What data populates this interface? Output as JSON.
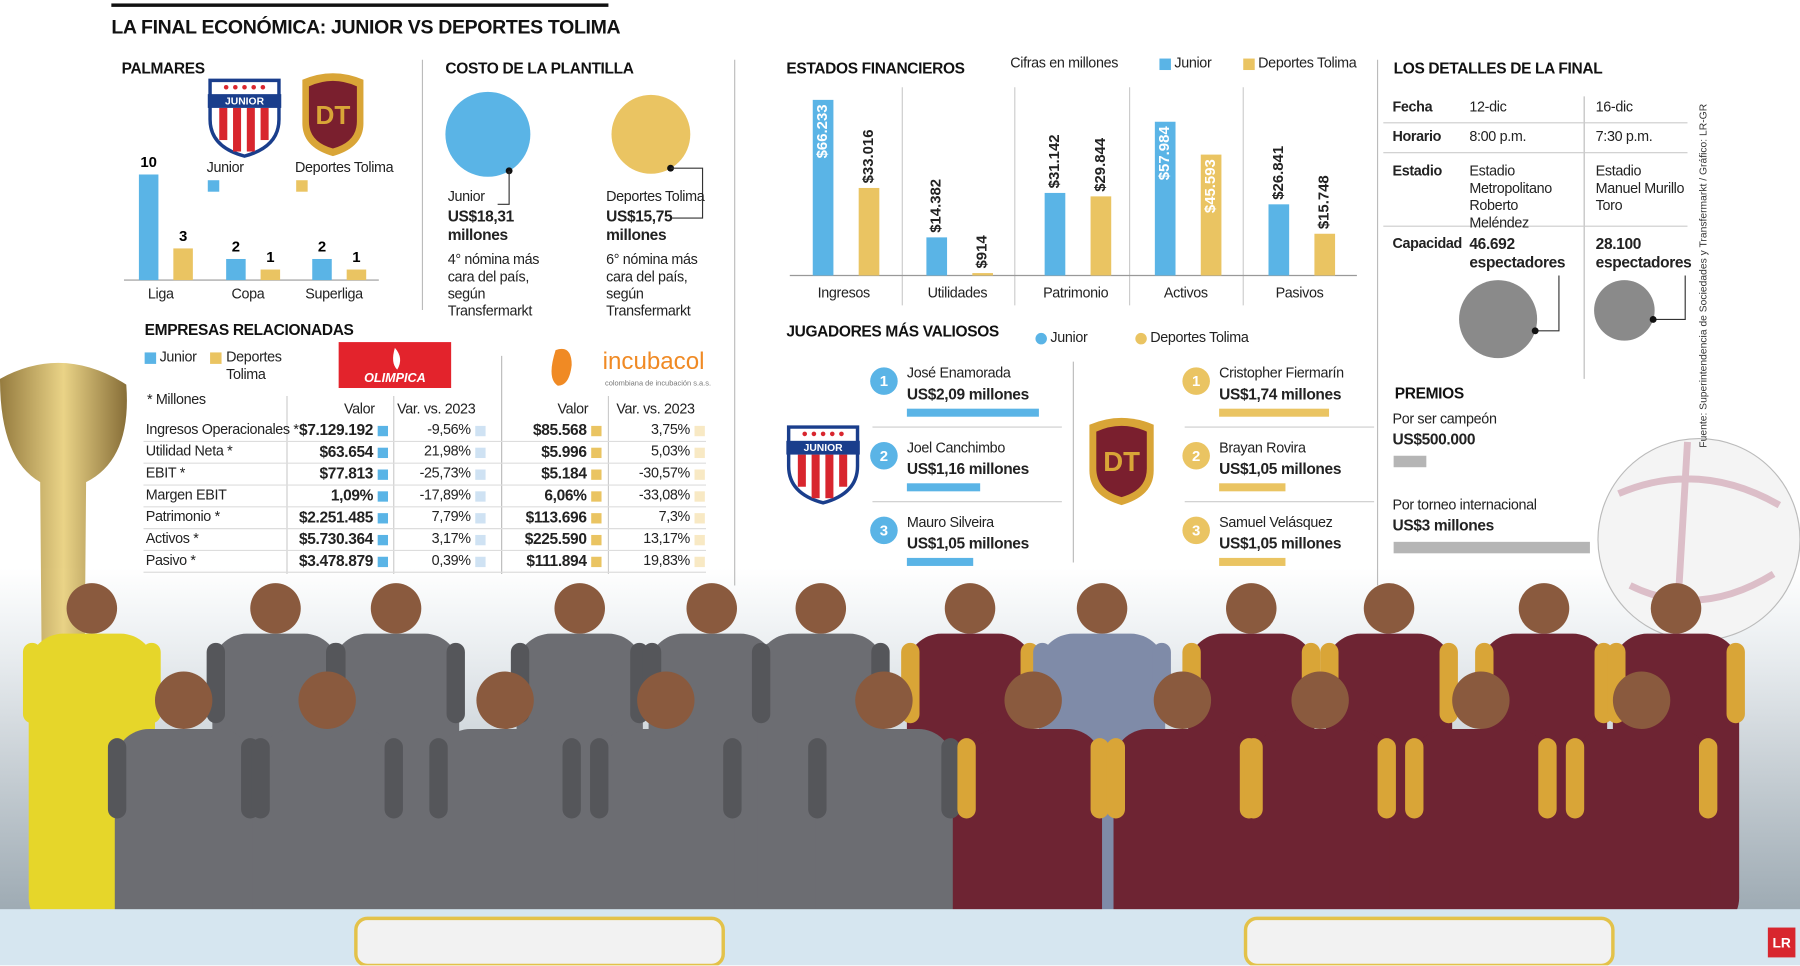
{
  "title": "LA FINAL ECONÓMICA: JUNIOR VS DEPORTES TOLIMA",
  "chart_data": [
    {
      "type": "bar",
      "title": "PALMARES",
      "categories": [
        "Liga",
        "Copa",
        "Superliga"
      ],
      "series": [
        {
          "name": "Junior",
          "color": "#5ab4e6",
          "values": [
            10,
            2,
            2
          ]
        },
        {
          "name": "Deportes Tolima",
          "color": "#eac462",
          "values": [
            3,
            1,
            1
          ]
        }
      ]
    },
    {
      "type": "bubble",
      "title": "COSTO DE LA PLANTILLA",
      "categories": [
        "Junior",
        "Deportes Tolima"
      ],
      "colors": [
        "#5ab4e6",
        "#eac462"
      ],
      "values": [
        18.31,
        15.75
      ],
      "value_labels": [
        "US$18,31 millones",
        "US$15,75 millones"
      ],
      "annotations": [
        "4° nómina más cara del país, según Transfermarkt",
        "6° nómina más cara del país, según Transfermarkt"
      ]
    },
    {
      "type": "bar",
      "title": "ESTADOS FINANCIEROS",
      "subtitle": "Cifras en millones",
      "categories": [
        "Ingresos",
        "Utilidades",
        "Patrimonio",
        "Activos",
        "Pasivos"
      ],
      "series": [
        {
          "name": "Junior",
          "color": "#5ab4e6",
          "values": [
            66233,
            14382,
            31142,
            57984,
            26841
          ],
          "value_labels": [
            "$66.233",
            "$14.382",
            "$31.142",
            "$57.984",
            "$26.841"
          ]
        },
        {
          "name": "Deportes Tolima",
          "color": "#eac462",
          "values": [
            33016,
            914,
            29844,
            45593,
            15748
          ],
          "value_labels": [
            "$33.016",
            "$914",
            "$29.844",
            "$45.593",
            "$15.748"
          ]
        }
      ]
    },
    {
      "type": "hbar",
      "title": "JUGADORES MÁS VALIOSOS",
      "series": [
        {
          "name": "Junior",
          "color": "#5ab4e6",
          "ranks": [
            1,
            2,
            3
          ],
          "players": [
            "José Enamorada",
            "Joel Canchimbo",
            "Mauro Silveira"
          ],
          "values": [
            2.09,
            1.16,
            1.05
          ],
          "value_labels": [
            "US$2,09 millones",
            "US$1,16 millones",
            "US$1,05 millones"
          ]
        },
        {
          "name": "Deportes Tolima",
          "color": "#eac462",
          "ranks": [
            1,
            2,
            3
          ],
          "players": [
            "Cristopher Fiermarín",
            "Brayan Rovira",
            "Samuel Velásquez"
          ],
          "values": [
            1.74,
            1.05,
            1.05
          ],
          "value_labels": [
            "US$1,74 millones",
            "US$1,05 millones",
            "US$1,05 millones"
          ]
        }
      ]
    },
    {
      "type": "bubble",
      "title": "Capacidad",
      "color": "#8a8a8a",
      "values": [
        46692,
        28100
      ],
      "value_labels": [
        "46.692 espectadores",
        "28.100 espectadores"
      ]
    },
    {
      "type": "hbar",
      "title": "PREMIOS",
      "color": "#b5b5b5",
      "categories": [
        "Por ser campeón",
        "Por torneo internacional"
      ],
      "values": [
        500000,
        3000000
      ],
      "value_labels": [
        "US$500.000",
        "US$3 millones"
      ]
    }
  ],
  "empresas": {
    "title": "EMPRESAS RELACIONADAS",
    "legend": [
      "Junior",
      "Deportes Tolima"
    ],
    "note": "* Millones",
    "colors": [
      "#5ab4e6",
      "#cfe2f3",
      "#eac462",
      "#f8e9c4"
    ],
    "columns": [
      "Valor",
      "Var. vs. 2023",
      "Valor",
      "Var. vs. 2023"
    ],
    "rows": [
      [
        "Ingresos Operacionales *",
        "$7.129.192",
        "-9,56%",
        "$85.568",
        "3,75%"
      ],
      [
        "Utilidad Neta *",
        "$63.654",
        "21,98%",
        "$5.996",
        "5,03%"
      ],
      [
        "EBIT *",
        "$77.813",
        "-25,73%",
        "$5.184",
        "-30,57%"
      ],
      [
        "Margen EBIT",
        "1,09%",
        "-17,89%",
        "6,06%",
        "-33,08%"
      ],
      [
        "Patrimonio *",
        "$2.251.485",
        "7,79%",
        "$113.696",
        "7,3%"
      ],
      [
        "Activos *",
        "$5.730.364",
        "3,17%",
        "$225.590",
        "13,17%"
      ],
      [
        "Pasivo *",
        "$3.478.879",
        "0,39%",
        "$111.894",
        "19,83%"
      ]
    ]
  },
  "details": {
    "title": "LOS DETALLES DE LA FINAL",
    "rows": [
      [
        "Fecha",
        "12-dic",
        "16-dic"
      ],
      [
        "Horario",
        "8:00 p.m.",
        "7:30 p.m."
      ],
      [
        "Estadio",
        "Estadio Metropolitano Roberto Meléndez",
        "Estadio Manuel Murillo Toro"
      ]
    ]
  },
  "logos": {
    "junior": "JUNIOR",
    "tolima": "DT",
    "olimpica": "OLIMPICA",
    "incubacol": "incubacol",
    "incubacol_tagline": "colombiana de incubación s.a.s."
  },
  "source": "Fuente: Superintendencia de Sociedades y Transfermarkt / Gráfico: LR-GR",
  "brand": "LR"
}
